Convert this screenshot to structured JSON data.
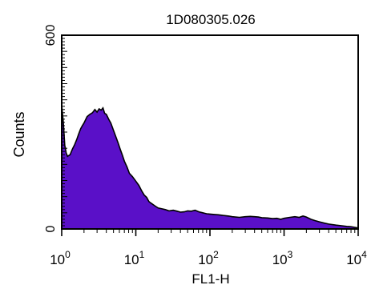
{
  "chart_data": {
    "type": "area",
    "title": "1D080305.026",
    "xlabel": "FL1-H",
    "ylabel": "Counts",
    "x_scale": "log",
    "xlim": [
      1,
      10000
    ],
    "ylim": [
      0,
      600
    ],
    "x_ticks": [
      {
        "value": 1,
        "base": "10",
        "exp": "0"
      },
      {
        "value": 10,
        "base": "10",
        "exp": "1"
      },
      {
        "value": 100,
        "base": "10",
        "exp": "2"
      },
      {
        "value": 1000,
        "base": "10",
        "exp": "3"
      },
      {
        "value": 10000,
        "base": "10",
        "exp": "4"
      }
    ],
    "y_ticks": [
      {
        "value": 0,
        "label": "0"
      },
      {
        "value": 600,
        "label": "600"
      }
    ],
    "fill_color": "#5A10C8",
    "outline_color": "#000000",
    "grid": false,
    "series": [
      {
        "x": [
          1,
          1.05,
          1.1,
          1.15,
          1.2,
          1.3,
          1.4,
          1.5,
          1.6,
          1.7,
          1.8,
          1.9,
          2.0,
          2.2,
          2.4,
          2.6,
          2.8,
          3.0,
          3.2,
          3.4,
          3.6,
          3.8,
          4.0,
          4.3,
          4.6,
          5.0,
          5.4,
          5.8,
          6.2,
          6.6,
          7.0,
          7.6,
          8.2,
          9.0,
          10,
          11,
          12,
          13,
          14,
          15,
          16,
          18,
          20,
          22,
          25,
          28,
          32,
          36,
          40,
          45,
          50,
          56,
          63,
          71,
          80,
          90,
          100,
          115,
          130,
          150,
          180,
          200,
          250,
          300,
          350,
          400,
          450,
          500,
          600,
          700,
          800,
          900,
          1000,
          1200,
          1400,
          1600,
          1800,
          2000,
          2300,
          2600,
          3000,
          3500,
          4000,
          5000,
          6000,
          7000,
          8000,
          9000,
          10000
        ],
        "y": [
          385,
          330,
          260,
          235,
          225,
          230,
          248,
          262,
          278,
          295,
          310,
          320,
          328,
          348,
          355,
          360,
          370,
          362,
          372,
          368,
          375,
          358,
          355,
          340,
          328,
          305,
          285,
          265,
          245,
          228,
          210,
          192,
          172,
          162,
          148,
          135,
          118,
          105,
          98,
          85,
          80,
          72,
          65,
          63,
          60,
          56,
          58,
          55,
          52,
          53,
          56,
          55,
          58,
          53,
          50,
          47,
          46,
          45,
          44,
          42,
          40,
          38,
          36,
          38,
          39,
          38,
          37,
          35,
          34,
          32,
          33,
          30,
          33,
          36,
          38,
          36,
          40,
          37,
          30,
          26,
          22,
          18,
          15,
          12,
          10,
          8,
          7,
          5,
          3
        ]
      }
    ]
  }
}
